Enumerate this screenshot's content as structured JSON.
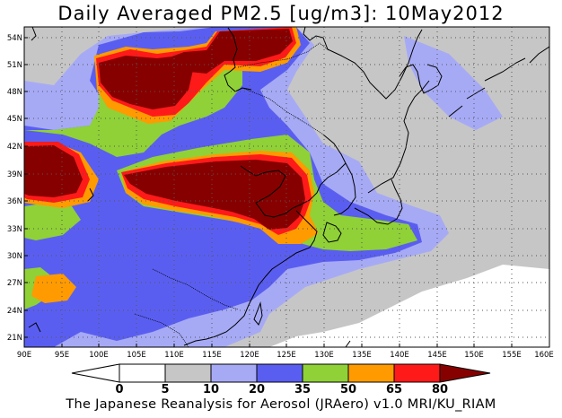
{
  "title": "Daily Averaged PM2.5 [ug/m3]: 10May2012",
  "footer": "The Japanese Reanalysis for Aerosol (JRAero) v1.0 MRI/KU_RIAM",
  "map": {
    "lon_range": [
      90,
      160
    ],
    "lat_range": [
      20,
      55
    ],
    "lat_ticks": [
      "54N",
      "51N",
      "48N",
      "45N",
      "42N",
      "39N",
      "36N",
      "33N",
      "30N",
      "27N",
      "24N",
      "21N"
    ],
    "lon_ticks": [
      "90E",
      "95E",
      "100E",
      "105E",
      "110E",
      "115E",
      "120E",
      "125E",
      "130E",
      "135E",
      "140E",
      "145E",
      "150E",
      "155E",
      "160E"
    ],
    "grid": "dotted"
  },
  "colorbar": {
    "levels": [
      "0",
      "5",
      "10",
      "20",
      "35",
      "50",
      "65",
      "80"
    ],
    "colors": [
      "#ffffff",
      "#c6c6c6",
      "#a6aaf5",
      "#5a5ef0",
      "#8fd137",
      "#ff9b00",
      "#ff1a1a",
      "#870000"
    ]
  },
  "colors": {
    "under": "#ffffff",
    "c5": "#c6c6c6",
    "c10": "#a6aaf5",
    "c20": "#5a5ef0",
    "c35": "#8fd137",
    "c50": "#ff9b00",
    "c65": "#ff1a1a",
    "c80": "#870000"
  }
}
